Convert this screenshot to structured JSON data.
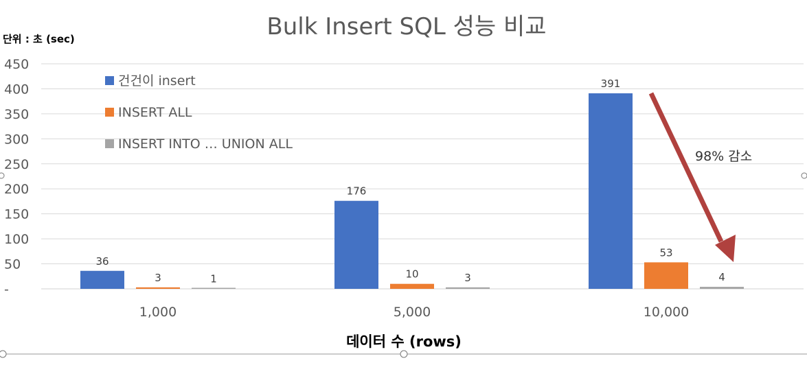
{
  "chart_data": {
    "type": "bar",
    "title": "Bulk Insert  SQL 성능 비교",
    "unit_label": "단위 : 초 (sec)",
    "xlabel": "데이터 수 (rows)",
    "ylabel": "",
    "ylim": [
      0,
      450
    ],
    "yticks": [
      "-",
      "50",
      "100",
      "150",
      "200",
      "250",
      "300",
      "350",
      "400",
      "450"
    ],
    "categories": [
      "1,000",
      "5,000",
      "10,000"
    ],
    "grid": true,
    "legend_position": "top-left",
    "series": [
      {
        "name": "건건이 insert",
        "color": "#4472C4",
        "values": [
          36,
          176,
          391
        ]
      },
      {
        "name": "INSERT ALL",
        "color": "#ED7D31",
        "values": [
          3,
          10,
          53
        ]
      },
      {
        "name": "INSERT INTO … UNION ALL",
        "color": "#A5A5A5",
        "values": [
          1,
          3,
          4
        ]
      }
    ],
    "annotation": {
      "text": "98% 감소",
      "arrow_color": "#B0413E"
    }
  }
}
